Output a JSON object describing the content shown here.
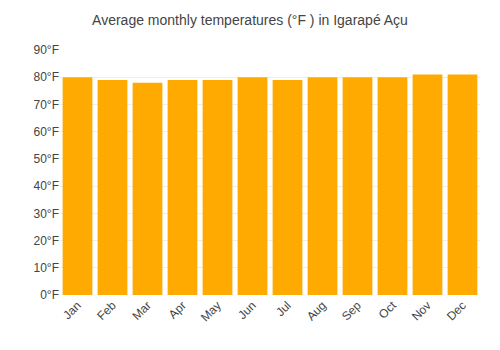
{
  "chart_data": {
    "type": "bar",
    "title": "Average monthly temperatures (°F ) in Igarapé Açu",
    "categories": [
      "Jan",
      "Feb",
      "Mar",
      "Apr",
      "May",
      "Jun",
      "Jul",
      "Aug",
      "Sep",
      "Oct",
      "Nov",
      "Dec"
    ],
    "values": [
      80,
      79,
      78,
      79,
      79,
      80,
      79,
      80,
      80,
      80,
      81,
      81
    ],
    "color": "#FFAA00",
    "ylim": [
      0,
      90
    ],
    "yticks": [
      {
        "value": 0,
        "label": "0°F"
      },
      {
        "value": 10,
        "label": "10°F"
      },
      {
        "value": 20,
        "label": "20°F"
      },
      {
        "value": 30,
        "label": "30°F"
      },
      {
        "value": 40,
        "label": "40°F"
      },
      {
        "value": 50,
        "label": "50°F"
      },
      {
        "value": 60,
        "label": "60°F"
      },
      {
        "value": 70,
        "label": "70°F"
      },
      {
        "value": 80,
        "label": "80°F"
      },
      {
        "value": 90,
        "label": "90°F"
      }
    ],
    "grid": true
  }
}
